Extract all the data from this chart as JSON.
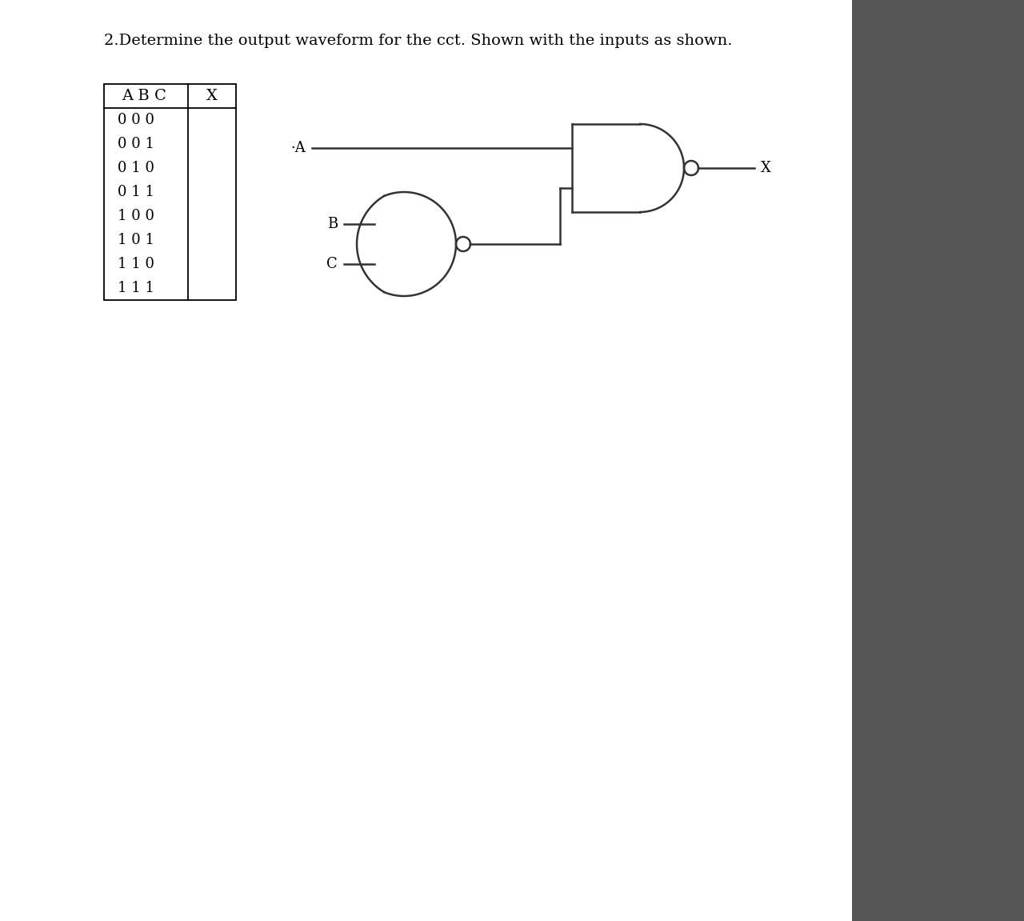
{
  "title": "2.Determine the output waveform for the cct. Shown with the inputs as shown.",
  "title_fontsize": 14,
  "background_color": "#f0f0f0",
  "line_color": "#333333",
  "line_width": 1.8,
  "label_fontsize": 13,
  "table_rows": [
    "0 0 0",
    "0 0 1",
    "0 1 0",
    "0 1 1",
    "1 0 0",
    "1 0 1",
    "1 1 0",
    "1 1 1"
  ]
}
